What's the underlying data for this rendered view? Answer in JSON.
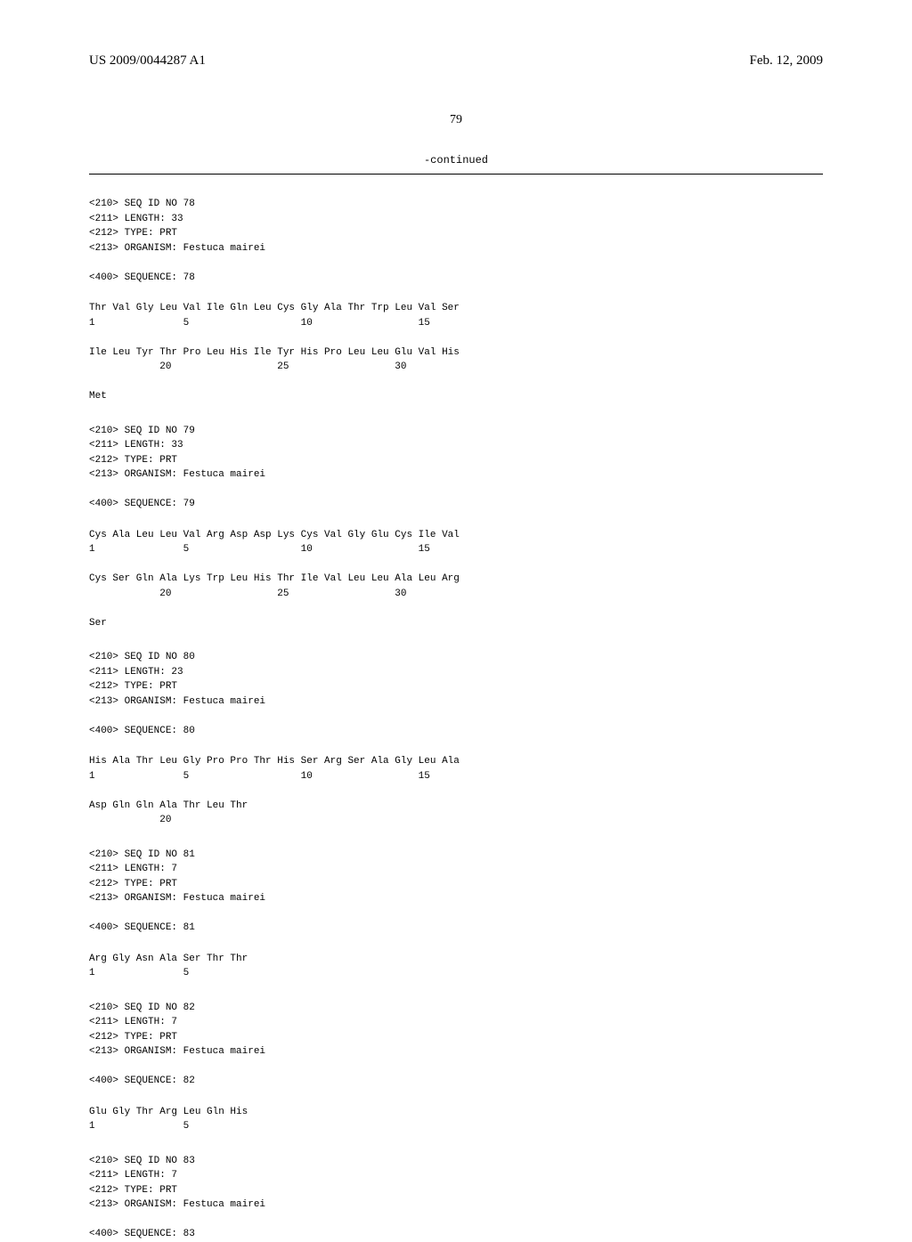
{
  "header": {
    "publication_number": "US 2009/0044287 A1",
    "date": "Feb. 12, 2009"
  },
  "page_number": "79",
  "continued_label": "-continued",
  "sequences": [
    {
      "id": "78",
      "length": "33",
      "type": "PRT",
      "organism": "Festuca mairei",
      "lines": [
        "Thr Val Gly Leu Val Ile Gln Leu Cys Gly Ala Thr Trp Leu Val Ser",
        "1               5                   10                  15",
        "",
        "Ile Leu Tyr Thr Pro Leu His Ile Tyr His Pro Leu Leu Glu Val His",
        "            20                  25                  30",
        "",
        "Met"
      ]
    },
    {
      "id": "79",
      "length": "33",
      "type": "PRT",
      "organism": "Festuca mairei",
      "lines": [
        "Cys Ala Leu Leu Val Arg Asp Asp Lys Cys Val Gly Glu Cys Ile Val",
        "1               5                   10                  15",
        "",
        "Cys Ser Gln Ala Lys Trp Leu His Thr Ile Val Leu Leu Ala Leu Arg",
        "            20                  25                  30",
        "",
        "Ser"
      ]
    },
    {
      "id": "80",
      "length": "23",
      "type": "PRT",
      "organism": "Festuca mairei",
      "lines": [
        "His Ala Thr Leu Gly Pro Pro Thr His Ser Arg Ser Ala Gly Leu Ala",
        "1               5                   10                  15",
        "",
        "Asp Gln Gln Ala Thr Leu Thr",
        "            20"
      ]
    },
    {
      "id": "81",
      "length": "7",
      "type": "PRT",
      "organism": "Festuca mairei",
      "lines": [
        "Arg Gly Asn Ala Ser Thr Thr",
        "1               5"
      ]
    },
    {
      "id": "82",
      "length": "7",
      "type": "PRT",
      "organism": "Festuca mairei",
      "lines": [
        "Glu Gly Thr Arg Leu Gln His",
        "1               5"
      ]
    },
    {
      "id": "83",
      "length": "7",
      "type": "PRT",
      "organism": "Festuca mairei",
      "lines": []
    }
  ]
}
